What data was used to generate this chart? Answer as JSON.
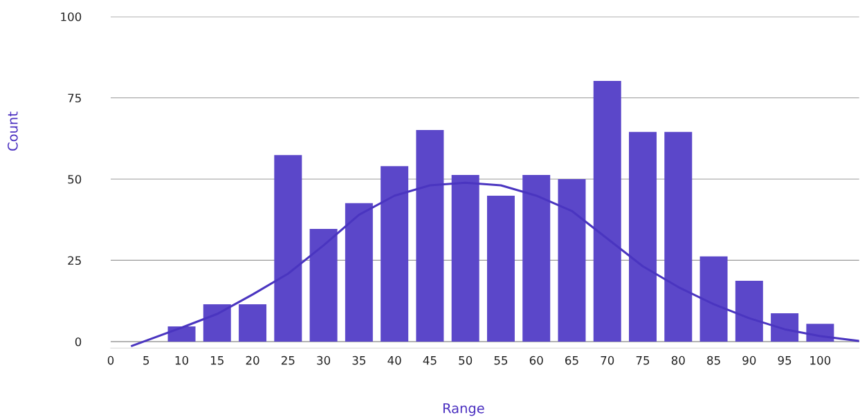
{
  "chart_data": {
    "type": "bar",
    "xlabel": "Range",
    "ylabel": "Count",
    "x": [
      10,
      15,
      20,
      25,
      30,
      35,
      40,
      45,
      50,
      55,
      60,
      65,
      70,
      75,
      80,
      85,
      90,
      95,
      100
    ],
    "series": [
      {
        "color": "#5b47c9",
        "values": [
          4.7,
          11.5,
          11.5,
          57.4,
          34.7,
          42.6,
          54,
          65.1,
          51.3,
          44.9,
          51.3,
          50,
          80.2,
          64.5,
          64.5,
          26.2,
          18.7,
          8.7,
          5.5
        ]
      },
      {
        "type": "line",
        "color": "#4a35c0",
        "x": [
          3,
          10,
          15,
          20,
          25,
          30,
          35,
          40,
          45,
          50,
          55,
          60,
          65,
          70,
          75,
          80,
          85,
          90,
          95,
          100,
          105.5
        ],
        "values": [
          -1.3,
          4.3,
          8.5,
          14.5,
          20.9,
          29.6,
          39,
          44.9,
          48.1,
          48.9,
          48.1,
          44.9,
          40.2,
          31.7,
          23.2,
          16.8,
          11.5,
          7.2,
          3.8,
          1.7,
          0.2
        ]
      }
    ],
    "xlim": [
      0,
      105.5
    ],
    "xticks": [
      0,
      5,
      10,
      15,
      20,
      25,
      30,
      35,
      40,
      45,
      50,
      55,
      60,
      65,
      70,
      75,
      80,
      85,
      90,
      95,
      100
    ],
    "ylim": [
      -2,
      100
    ],
    "yticks": [
      0,
      25,
      50,
      75,
      100
    ],
    "grid": "y",
    "marker": "none",
    "line_style": "solid"
  }
}
